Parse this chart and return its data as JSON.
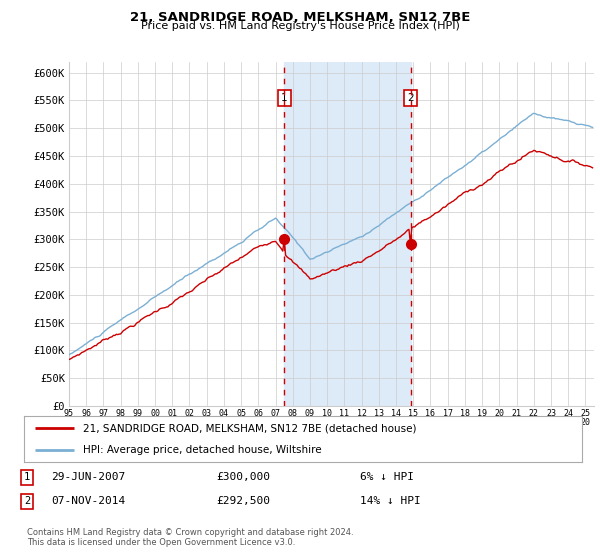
{
  "title": "21, SANDRIDGE ROAD, MELKSHAM, SN12 7BE",
  "subtitle": "Price paid vs. HM Land Registry's House Price Index (HPI)",
  "legend_line1": "21, SANDRIDGE ROAD, MELKSHAM, SN12 7BE (detached house)",
  "legend_line2": "HPI: Average price, detached house, Wiltshire",
  "annotation1": {
    "label": "1",
    "date_str": "29-JUN-2007",
    "price": "£300,000",
    "note": "6% ↓ HPI"
  },
  "annotation2": {
    "label": "2",
    "date_str": "07-NOV-2014",
    "price": "£292,500",
    "note": "14% ↓ HPI"
  },
  "hpi_color": "#7bafd4",
  "price_color": "#cc0000",
  "shading_color": "#ddeaf7",
  "marker1_x": 2007.5,
  "marker1_y": 300000,
  "marker2_x": 2014.85,
  "marker2_y": 292500,
  "vline1_x": 2007.5,
  "vline2_x": 2014.85,
  "ylim": [
    0,
    620000
  ],
  "xlim_start": 1995.0,
  "xlim_end": 2025.5,
  "yticks": [
    0,
    50000,
    100000,
    150000,
    200000,
    250000,
    300000,
    350000,
    400000,
    450000,
    500000,
    550000,
    600000
  ],
  "ytick_labels": [
    "£0",
    "£50K",
    "£100K",
    "£150K",
    "£200K",
    "£250K",
    "£300K",
    "£350K",
    "£400K",
    "£450K",
    "£500K",
    "£550K",
    "£600K"
  ],
  "xtick_years": [
    1995,
    1996,
    1997,
    1998,
    1999,
    2000,
    2001,
    2002,
    2003,
    2004,
    2005,
    2006,
    2007,
    2008,
    2009,
    2010,
    2011,
    2012,
    2013,
    2014,
    2015,
    2016,
    2017,
    2018,
    2019,
    2020,
    2021,
    2022,
    2023,
    2024,
    2025
  ],
  "footer": "Contains HM Land Registry data © Crown copyright and database right 2024.\nThis data is licensed under the Open Government Licence v3.0.",
  "bg_color": "#ffffff",
  "grid_color": "#cccccc"
}
